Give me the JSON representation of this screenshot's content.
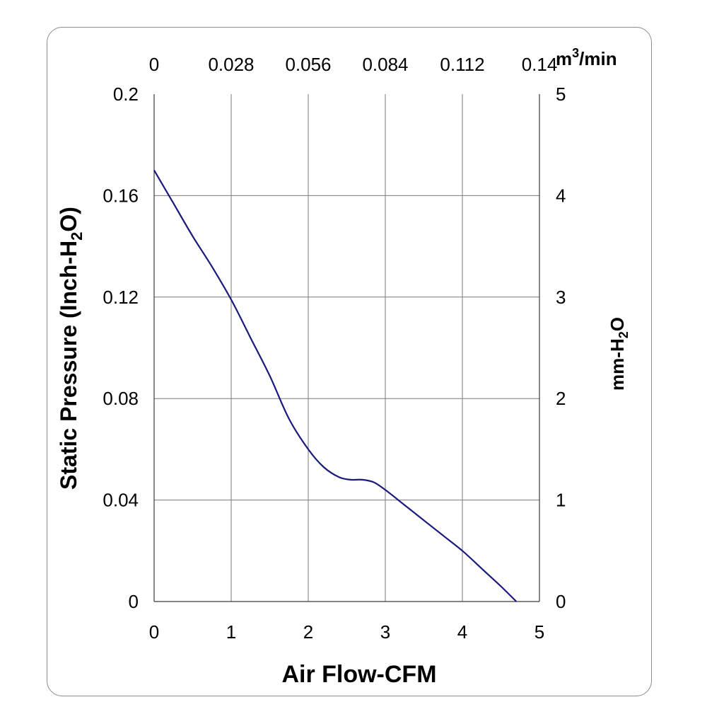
{
  "chart_data": {
    "type": "line",
    "xlabel": "Air Flow-CFM",
    "ylabel": "Static Pressure (Inch-H2O)",
    "ylabel_parts": [
      "Static Pressure (Inch-H",
      "2",
      "O)"
    ],
    "x2label_parts": [
      "m",
      "3",
      "/min"
    ],
    "y2label_parts": [
      "mm-H",
      "2",
      "O"
    ],
    "xlim": [
      0,
      5
    ],
    "ylim": [
      0,
      0.2
    ],
    "x2lim": [
      0,
      0.14
    ],
    "y2lim": [
      0,
      5
    ],
    "grid": true,
    "x_ticks": [
      "0",
      "1",
      "2",
      "3",
      "4",
      "5"
    ],
    "y_ticks": [
      "0",
      "0.04",
      "0.08",
      "0.12",
      "0.16",
      "0.2"
    ],
    "x2_ticks": [
      "0",
      "0.028",
      "0.056",
      "0.084",
      "0.112",
      "0.14"
    ],
    "y2_ticks": [
      "0",
      "1",
      "2",
      "3",
      "4",
      "5"
    ],
    "series": [
      {
        "color": "#1a1a7e",
        "x": [
          0,
          0.25,
          0.5,
          0.75,
          1.0,
          1.25,
          1.5,
          1.75,
          2.0,
          2.2,
          2.4,
          2.55,
          2.7,
          2.85,
          3.0,
          3.25,
          3.5,
          3.75,
          4.0,
          4.25,
          4.5,
          4.7
        ],
        "y": [
          0.17,
          0.157,
          0.144,
          0.132,
          0.119,
          0.104,
          0.089,
          0.072,
          0.06,
          0.053,
          0.049,
          0.048,
          0.048,
          0.047,
          0.044,
          0.038,
          0.032,
          0.026,
          0.02,
          0.013,
          0.006,
          0.0
        ]
      }
    ]
  }
}
